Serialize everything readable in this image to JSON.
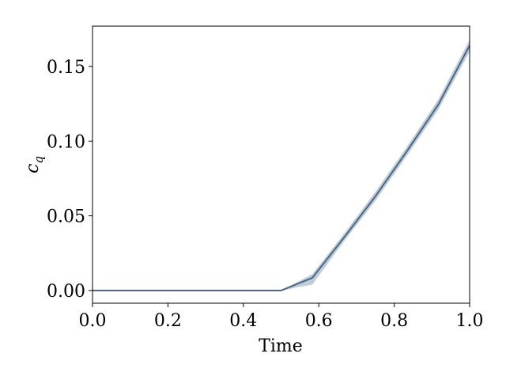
{
  "chart_data": {
    "type": "line",
    "xlabel": "Time",
    "ylabel": {
      "text": "c",
      "subscript": "q"
    },
    "x": [
      0,
      0.083,
      0.167,
      0.25,
      0.333,
      0.417,
      0.5,
      0.583,
      0.667,
      0.75,
      0.833,
      0.917,
      1.0
    ],
    "series": [
      {
        "color": "#4d6782",
        "band_color": "#7f9bb8",
        "values": [
          0,
          0,
          0,
          0,
          0,
          0,
          0,
          0.0085,
          0.0355,
          0.063,
          0.093,
          0.1245,
          0.164
        ],
        "lower": [
          0,
          0,
          0,
          0,
          0,
          0,
          0,
          0.004,
          0.033,
          0.06,
          0.09,
          0.121,
          0.16
        ],
        "upper": [
          0,
          0,
          0,
          0,
          0,
          0,
          0,
          0.011,
          0.038,
          0.066,
          0.096,
          0.128,
          0.168
        ]
      }
    ],
    "xlim": [
      0,
      1
    ],
    "ylim": [
      -0.0085,
      0.177
    ],
    "xticks": [
      {
        "value": 0,
        "label": "0.0"
      },
      0.2,
      0.4,
      0.6,
      0.8,
      {
        "value": 1,
        "label": "1.0"
      }
    ],
    "yticks": [
      {
        "value": 0,
        "label": "0.00"
      },
      0.05,
      {
        "value": 0.1,
        "label": "0.10"
      },
      0.15
    ],
    "grid": false
  }
}
